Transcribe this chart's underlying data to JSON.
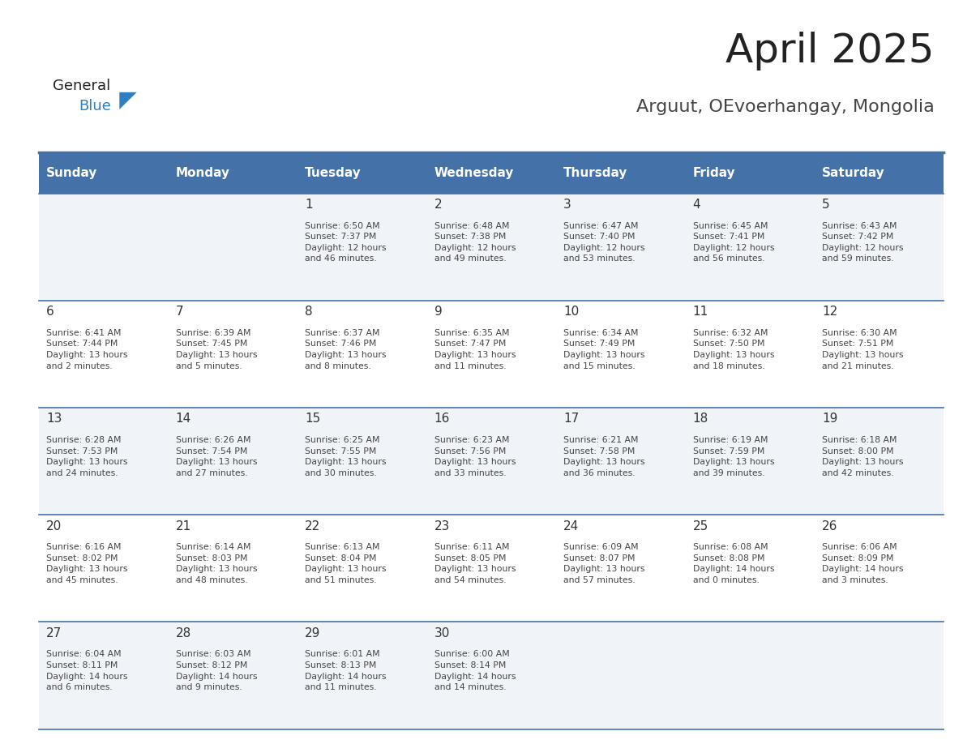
{
  "title": "April 2025",
  "subtitle": "Arguut, OEvoerhangay, Mongolia",
  "days_of_week": [
    "Sunday",
    "Monday",
    "Tuesday",
    "Wednesday",
    "Thursday",
    "Friday",
    "Saturday"
  ],
  "header_bg": "#4472a8",
  "header_text": "#ffffff",
  "cell_bg_even": "#f0f4f8",
  "cell_bg_odd": "#ffffff",
  "row_line_color": "#4472a8",
  "day_num_color": "#333333",
  "text_color": "#444444",
  "title_color": "#222222",
  "subtitle_color": "#444444",
  "logo_general_color": "#222222",
  "logo_blue_color": "#2e7fc1",
  "calendar": [
    [
      {
        "day": null,
        "text": ""
      },
      {
        "day": null,
        "text": ""
      },
      {
        "day": 1,
        "text": "Sunrise: 6:50 AM\nSunset: 7:37 PM\nDaylight: 12 hours\nand 46 minutes."
      },
      {
        "day": 2,
        "text": "Sunrise: 6:48 AM\nSunset: 7:38 PM\nDaylight: 12 hours\nand 49 minutes."
      },
      {
        "day": 3,
        "text": "Sunrise: 6:47 AM\nSunset: 7:40 PM\nDaylight: 12 hours\nand 53 minutes."
      },
      {
        "day": 4,
        "text": "Sunrise: 6:45 AM\nSunset: 7:41 PM\nDaylight: 12 hours\nand 56 minutes."
      },
      {
        "day": 5,
        "text": "Sunrise: 6:43 AM\nSunset: 7:42 PM\nDaylight: 12 hours\nand 59 minutes."
      }
    ],
    [
      {
        "day": 6,
        "text": "Sunrise: 6:41 AM\nSunset: 7:44 PM\nDaylight: 13 hours\nand 2 minutes."
      },
      {
        "day": 7,
        "text": "Sunrise: 6:39 AM\nSunset: 7:45 PM\nDaylight: 13 hours\nand 5 minutes."
      },
      {
        "day": 8,
        "text": "Sunrise: 6:37 AM\nSunset: 7:46 PM\nDaylight: 13 hours\nand 8 minutes."
      },
      {
        "day": 9,
        "text": "Sunrise: 6:35 AM\nSunset: 7:47 PM\nDaylight: 13 hours\nand 11 minutes."
      },
      {
        "day": 10,
        "text": "Sunrise: 6:34 AM\nSunset: 7:49 PM\nDaylight: 13 hours\nand 15 minutes."
      },
      {
        "day": 11,
        "text": "Sunrise: 6:32 AM\nSunset: 7:50 PM\nDaylight: 13 hours\nand 18 minutes."
      },
      {
        "day": 12,
        "text": "Sunrise: 6:30 AM\nSunset: 7:51 PM\nDaylight: 13 hours\nand 21 minutes."
      }
    ],
    [
      {
        "day": 13,
        "text": "Sunrise: 6:28 AM\nSunset: 7:53 PM\nDaylight: 13 hours\nand 24 minutes."
      },
      {
        "day": 14,
        "text": "Sunrise: 6:26 AM\nSunset: 7:54 PM\nDaylight: 13 hours\nand 27 minutes."
      },
      {
        "day": 15,
        "text": "Sunrise: 6:25 AM\nSunset: 7:55 PM\nDaylight: 13 hours\nand 30 minutes."
      },
      {
        "day": 16,
        "text": "Sunrise: 6:23 AM\nSunset: 7:56 PM\nDaylight: 13 hours\nand 33 minutes."
      },
      {
        "day": 17,
        "text": "Sunrise: 6:21 AM\nSunset: 7:58 PM\nDaylight: 13 hours\nand 36 minutes."
      },
      {
        "day": 18,
        "text": "Sunrise: 6:19 AM\nSunset: 7:59 PM\nDaylight: 13 hours\nand 39 minutes."
      },
      {
        "day": 19,
        "text": "Sunrise: 6:18 AM\nSunset: 8:00 PM\nDaylight: 13 hours\nand 42 minutes."
      }
    ],
    [
      {
        "day": 20,
        "text": "Sunrise: 6:16 AM\nSunset: 8:02 PM\nDaylight: 13 hours\nand 45 minutes."
      },
      {
        "day": 21,
        "text": "Sunrise: 6:14 AM\nSunset: 8:03 PM\nDaylight: 13 hours\nand 48 minutes."
      },
      {
        "day": 22,
        "text": "Sunrise: 6:13 AM\nSunset: 8:04 PM\nDaylight: 13 hours\nand 51 minutes."
      },
      {
        "day": 23,
        "text": "Sunrise: 6:11 AM\nSunset: 8:05 PM\nDaylight: 13 hours\nand 54 minutes."
      },
      {
        "day": 24,
        "text": "Sunrise: 6:09 AM\nSunset: 8:07 PM\nDaylight: 13 hours\nand 57 minutes."
      },
      {
        "day": 25,
        "text": "Sunrise: 6:08 AM\nSunset: 8:08 PM\nDaylight: 14 hours\nand 0 minutes."
      },
      {
        "day": 26,
        "text": "Sunrise: 6:06 AM\nSunset: 8:09 PM\nDaylight: 14 hours\nand 3 minutes."
      }
    ],
    [
      {
        "day": 27,
        "text": "Sunrise: 6:04 AM\nSunset: 8:11 PM\nDaylight: 14 hours\nand 6 minutes."
      },
      {
        "day": 28,
        "text": "Sunrise: 6:03 AM\nSunset: 8:12 PM\nDaylight: 14 hours\nand 9 minutes."
      },
      {
        "day": 29,
        "text": "Sunrise: 6:01 AM\nSunset: 8:13 PM\nDaylight: 14 hours\nand 11 minutes."
      },
      {
        "day": 30,
        "text": "Sunrise: 6:00 AM\nSunset: 8:14 PM\nDaylight: 14 hours\nand 14 minutes."
      },
      {
        "day": null,
        "text": ""
      },
      {
        "day": null,
        "text": ""
      },
      {
        "day": null,
        "text": ""
      }
    ]
  ]
}
